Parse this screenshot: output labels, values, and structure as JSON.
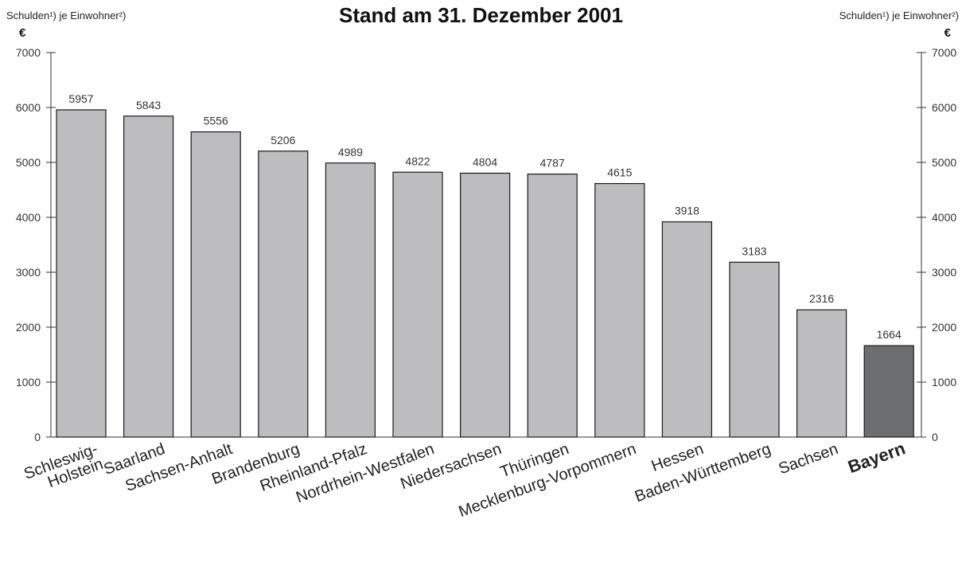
{
  "chart_data": {
    "type": "bar",
    "title": "Stand am 31. Dezember 2001",
    "ylabel_left": "Schulden¹) je Einwohner²)",
    "ylabel_right": "Schulden¹) je Einwohner²)",
    "yunit_left": "€",
    "yunit_right": "€",
    "ylim": [
      0,
      7000
    ],
    "yticks": [
      0,
      1000,
      2000,
      3000,
      4000,
      5000,
      6000,
      7000
    ],
    "categories": [
      "Schleswig-Holstein",
      "Saarland",
      "Sachsen-Anhalt",
      "Brandenburg",
      "Rheinland-Pfalz",
      "Nordrhein-Westfalen",
      "Niedersachsen",
      "Thüringen",
      "Mecklenburg-Vorpommern",
      "Hessen",
      "Baden-Württemberg",
      "Sachsen",
      "Bayern"
    ],
    "category_lines": [
      [
        "Schleswig-",
        "Holstein"
      ],
      [
        "Saarland"
      ],
      [
        "Sachsen-Anhalt"
      ],
      [
        "Brandenburg"
      ],
      [
        "Rheinland-Pfalz"
      ],
      [
        "Nordrhein-Westfalen"
      ],
      [
        "Niedersachsen"
      ],
      [
        "Thüringen"
      ],
      [
        "Mecklenburg-Vorpommern"
      ],
      [
        "Hessen"
      ],
      [
        "Baden-Württemberg"
      ],
      [
        "Sachsen"
      ],
      [
        "Bayern"
      ]
    ],
    "values": [
      5957,
      5843,
      5556,
      5206,
      4989,
      4822,
      4804,
      4787,
      4615,
      3918,
      3183,
      2316,
      1664
    ],
    "highlight": "Bayern",
    "colors": {
      "bar": "#bdbdc0",
      "highlight_bar": "#6d6e71",
      "bar_stroke": "#1a1a1a",
      "axis": "#333333"
    },
    "grid": false,
    "legend": "none"
  }
}
